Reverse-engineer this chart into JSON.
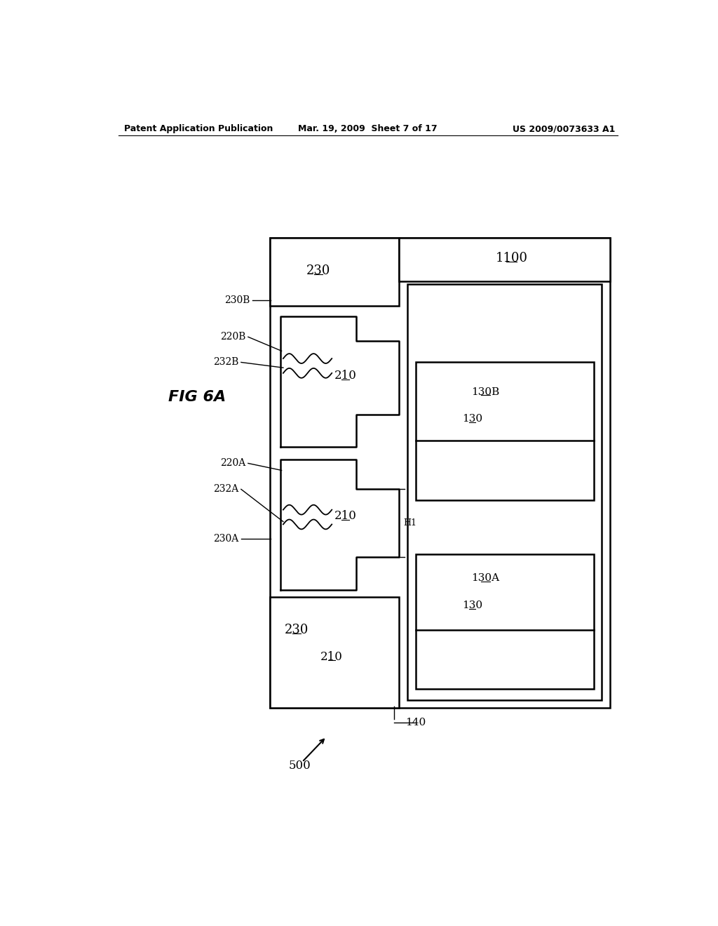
{
  "bg_color": "#ffffff",
  "lw": 1.8,
  "lw_thin": 1.0,
  "header_left": "Patent Application Publication",
  "header_mid": "Mar. 19, 2009  Sheet 7 of 17",
  "header_right": "US 2009/0073633 A1"
}
